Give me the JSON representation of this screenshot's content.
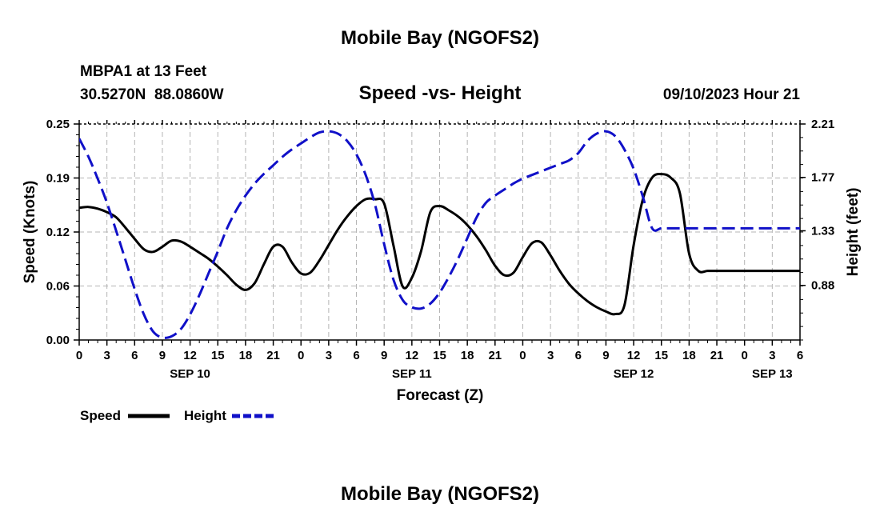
{
  "page": {
    "top_title": "Mobile Bay (NGOFS2)",
    "bottom_title": "Mobile Bay (NGOFS2)",
    "station_line1": "MBPA1 at 13 Feet",
    "station_line2": "30.5270N  88.0860W",
    "date_label": "09/10/2023 Hour 21"
  },
  "legend": {
    "speed_label": "Speed",
    "height_label": "Height"
  },
  "colors": {
    "speed": "#000000",
    "height": "#1010c8",
    "grid": "#b4b4b4"
  },
  "chart_data": {
    "type": "line",
    "title": "Speed -vs- Height",
    "xlabel": "Forecast (Z)",
    "ylabel_left": "Speed (Knots)",
    "ylabel_right": "Height (feet)",
    "x_range_hours": [
      0,
      78
    ],
    "x_tick_step_hours": 3,
    "x_tick_labels": [
      "0",
      "3",
      "6",
      "9",
      "12",
      "15",
      "18",
      "21",
      "0",
      "3",
      "6",
      "9",
      "12",
      "15",
      "18",
      "21",
      "0",
      "3",
      "6",
      "9",
      "12",
      "15",
      "18",
      "21",
      "0",
      "3",
      "6"
    ],
    "date_labels": [
      {
        "hour": 12,
        "label": "SEP 10"
      },
      {
        "hour": 36,
        "label": "SEP 11"
      },
      {
        "hour": 60,
        "label": "SEP 12"
      },
      {
        "hour": 75,
        "label": "SEP 13"
      }
    ],
    "y_left": {
      "min": 0.0,
      "max": 0.25,
      "ticks": [
        "0.00",
        "0.06",
        "0.12",
        "0.19",
        "0.25"
      ]
    },
    "y_right": {
      "min": 0.43,
      "max": 2.21,
      "ticks": [
        "0.88",
        "1.33",
        "1.77",
        "2.21"
      ],
      "tick_values": [
        0.88,
        1.33,
        1.77,
        2.21
      ]
    },
    "grid": true,
    "series": [
      {
        "name": "Speed",
        "axis": "left",
        "style": "solid",
        "x": [
          0,
          1,
          2,
          3,
          4,
          5,
          6,
          7,
          8,
          9,
          10,
          11,
          12,
          13,
          14,
          15,
          16,
          17,
          18,
          19,
          20,
          21,
          22,
          23,
          24,
          25,
          26,
          27,
          28,
          29,
          30,
          31,
          32,
          33,
          34,
          35,
          36,
          37,
          38,
          39,
          40,
          41,
          42,
          43,
          44,
          45,
          46,
          47,
          48,
          49,
          50,
          51,
          52,
          53,
          54,
          55,
          56,
          57,
          58,
          59,
          60,
          61,
          62,
          63,
          64,
          65,
          66,
          67,
          68,
          69,
          70,
          71,
          72,
          73,
          74,
          75,
          76,
          77,
          78
        ],
        "values": [
          0.153,
          0.154,
          0.152,
          0.148,
          0.142,
          0.13,
          0.117,
          0.105,
          0.102,
          0.108,
          0.115,
          0.114,
          0.108,
          0.101,
          0.094,
          0.085,
          0.075,
          0.064,
          0.058,
          0.066,
          0.088,
          0.108,
          0.108,
          0.09,
          0.077,
          0.078,
          0.092,
          0.11,
          0.128,
          0.143,
          0.155,
          0.163,
          0.163,
          0.158,
          0.11,
          0.062,
          0.072,
          0.103,
          0.148,
          0.155,
          0.15,
          0.143,
          0.133,
          0.12,
          0.104,
          0.086,
          0.075,
          0.078,
          0.096,
          0.112,
          0.113,
          0.098,
          0.08,
          0.065,
          0.054,
          0.045,
          0.038,
          0.033,
          0.03,
          0.04,
          0.11,
          0.163,
          0.188,
          0.192,
          0.188,
          0.17,
          0.1,
          0.08,
          0.08,
          0.08,
          0.08,
          0.08,
          0.08,
          0.08,
          0.08,
          0.08,
          0.08,
          0.08,
          0.08
        ]
      },
      {
        "name": "Height",
        "axis": "right",
        "style": "dashed",
        "x": [
          0,
          1,
          2,
          3,
          4,
          5,
          6,
          7,
          8,
          9,
          10,
          11,
          12,
          13,
          14,
          15,
          16,
          17,
          18,
          19,
          20,
          21,
          22,
          23,
          24,
          25,
          26,
          27,
          28,
          29,
          30,
          31,
          32,
          33,
          34,
          35,
          36,
          37,
          38,
          39,
          40,
          41,
          42,
          43,
          44,
          45,
          46,
          47,
          48,
          49,
          50,
          51,
          52,
          53,
          54,
          55,
          56,
          57,
          58,
          59,
          60,
          61,
          62,
          63,
          64,
          65,
          66,
          67,
          68,
          69,
          70,
          71,
          72,
          73,
          74,
          75,
          76,
          77,
          78
        ],
        "values": [
          2.09,
          1.94,
          1.76,
          1.56,
          1.33,
          1.09,
          0.85,
          0.64,
          0.5,
          0.45,
          0.46,
          0.52,
          0.64,
          0.8,
          0.98,
          1.16,
          1.35,
          1.5,
          1.62,
          1.72,
          1.8,
          1.87,
          1.94,
          2.0,
          2.05,
          2.1,
          2.14,
          2.15,
          2.13,
          2.07,
          1.96,
          1.79,
          1.55,
          1.22,
          0.93,
          0.76,
          0.7,
          0.69,
          0.73,
          0.82,
          0.95,
          1.1,
          1.27,
          1.44,
          1.56,
          1.62,
          1.67,
          1.72,
          1.76,
          1.79,
          1.82,
          1.85,
          1.88,
          1.91,
          1.97,
          2.07,
          2.13,
          2.15,
          2.11,
          2.0,
          1.84,
          1.61,
          1.35,
          1.35,
          1.35,
          1.35,
          1.35,
          1.35,
          1.35,
          1.35,
          1.35,
          1.35,
          1.35,
          1.35,
          1.35,
          1.35,
          1.35,
          1.35,
          1.35
        ]
      }
    ]
  }
}
